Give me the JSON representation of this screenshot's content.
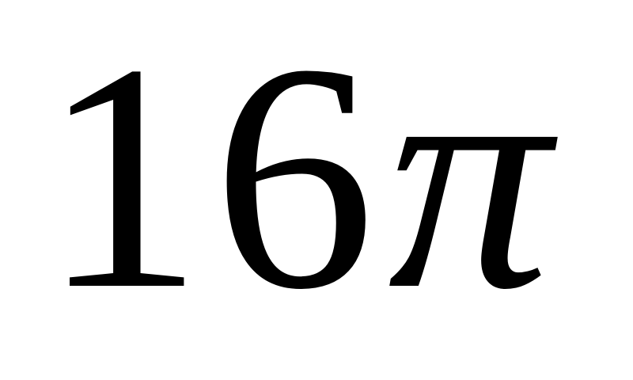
{
  "expression": {
    "number": "16",
    "symbol": "π"
  },
  "colors": {
    "background": "#ffffff",
    "text": "#000000"
  }
}
